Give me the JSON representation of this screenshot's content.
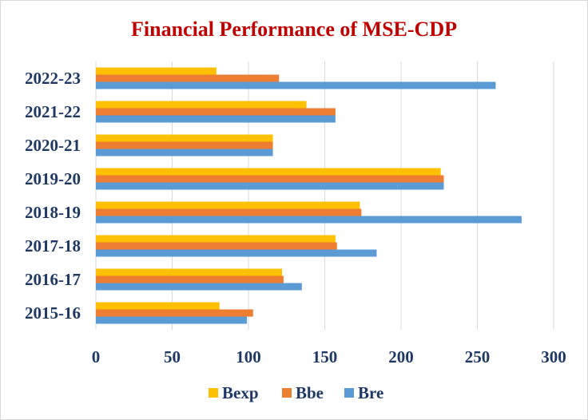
{
  "chart_data": {
    "type": "bar",
    "orientation": "horizontal",
    "title": "Financial  Performance  of MSE-CDP",
    "title_color": "#c00000",
    "categories": [
      "2015-16",
      "2016-17",
      "2017-18",
      "2018-19",
      "2019-20",
      "2020-21",
      "2021-22",
      "2022-23"
    ],
    "series": [
      {
        "name": "Bexp",
        "color": "#ffc000",
        "values": [
          81,
          122,
          157,
          173,
          226,
          116,
          138,
          79
        ]
      },
      {
        "name": "Bbe",
        "color": "#ed7d31",
        "values": [
          103,
          123,
          158,
          174,
          228,
          116,
          157,
          120
        ]
      },
      {
        "name": "Bre",
        "color": "#5b9bd5",
        "values": [
          99,
          135,
          184,
          279,
          228,
          116,
          157,
          262
        ]
      }
    ],
    "x_ticks": [
      "0",
      "50",
      "100",
      "150",
      "200",
      "250",
      "300"
    ],
    "xlim": [
      0,
      300
    ],
    "xlabel": "",
    "ylabel": "",
    "grid": "vertical",
    "legend_position": "bottom"
  }
}
